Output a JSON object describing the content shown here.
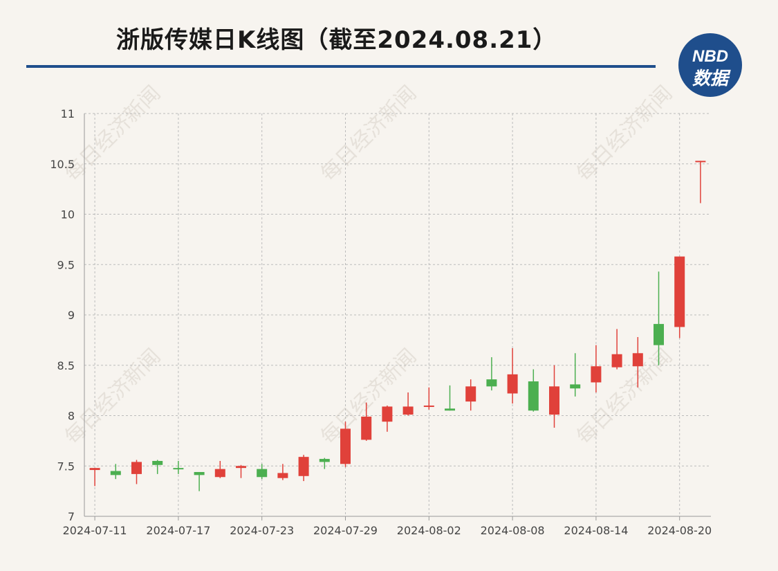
{
  "title": "浙版传媒日K线图（截至2024.08.21）",
  "logo": {
    "top": "NBD",
    "bottom": "数据",
    "color": "#1f4e8c"
  },
  "watermark_text": "每日经济新闻",
  "colors": {
    "up": "#e0413a",
    "down": "#4caf50",
    "axis": "#999999",
    "grid": "#bbbbbb",
    "title_rule": "#1f4e8c"
  },
  "chart_data": {
    "type": "candlestick",
    "title": "浙版传媒日K线图（截至2024.08.21）",
    "ylim": [
      7,
      11
    ],
    "yticks": [
      7,
      7.5,
      8,
      8.5,
      9,
      9.5,
      10,
      10.5,
      11
    ],
    "ytick_labels": [
      "7",
      "7.5",
      "8",
      "8.5",
      "9",
      "9.5",
      "10",
      "10.5",
      "11"
    ],
    "xtick_labels": [
      "2024-07-11",
      "2024-07-17",
      "2024-07-23",
      "2024-07-29",
      "2024-08-02",
      "2024-08-08",
      "2024-08-14",
      "2024-08-20"
    ],
    "xtick_index": [
      0,
      4,
      8,
      12,
      16,
      20,
      24,
      28
    ],
    "grid": "dashed",
    "candles": [
      {
        "date": "2024-07-11",
        "open": 7.46,
        "close": 7.48,
        "high": 7.48,
        "low": 7.3
      },
      {
        "date": "2024-07-12",
        "open": 7.45,
        "close": 7.41,
        "high": 7.52,
        "low": 7.37
      },
      {
        "date": "2024-07-15",
        "open": 7.42,
        "close": 7.54,
        "high": 7.56,
        "low": 7.32
      },
      {
        "date": "2024-07-16",
        "open": 7.55,
        "close": 7.51,
        "high": 7.56,
        "low": 7.42
      },
      {
        "date": "2024-07-17",
        "open": 7.48,
        "close": 7.47,
        "high": 7.55,
        "low": 7.42
      },
      {
        "date": "2024-07-18",
        "open": 7.44,
        "close": 7.41,
        "high": 7.44,
        "low": 7.25
      },
      {
        "date": "2024-07-19",
        "open": 7.39,
        "close": 7.47,
        "high": 7.55,
        "low": 7.38
      },
      {
        "date": "2024-07-22",
        "open": 7.48,
        "close": 7.5,
        "high": 7.51,
        "low": 7.38
      },
      {
        "date": "2024-07-23",
        "open": 7.47,
        "close": 7.39,
        "high": 7.52,
        "low": 7.37
      },
      {
        "date": "2024-07-24",
        "open": 7.38,
        "close": 7.43,
        "high": 7.52,
        "low": 7.36
      },
      {
        "date": "2024-07-25",
        "open": 7.4,
        "close": 7.59,
        "high": 7.61,
        "low": 7.35
      },
      {
        "date": "2024-07-26",
        "open": 7.57,
        "close": 7.54,
        "high": 7.58,
        "low": 7.47
      },
      {
        "date": "2024-07-29",
        "open": 7.52,
        "close": 7.87,
        "high": 7.94,
        "low": 7.49
      },
      {
        "date": "2024-07-30",
        "open": 7.76,
        "close": 7.99,
        "high": 8.13,
        "low": 7.75
      },
      {
        "date": "2024-07-31",
        "open": 7.94,
        "close": 8.09,
        "high": 8.1,
        "low": 7.84
      },
      {
        "date": "2024-08-01",
        "open": 8.01,
        "close": 8.09,
        "high": 8.23,
        "low": 8.0
      },
      {
        "date": "2024-08-02",
        "open": 8.09,
        "close": 8.1,
        "high": 8.28,
        "low": 8.06
      },
      {
        "date": "2024-08-05",
        "open": 8.07,
        "close": 8.05,
        "high": 8.3,
        "low": 8.05
      },
      {
        "date": "2024-08-06",
        "open": 8.14,
        "close": 8.29,
        "high": 8.36,
        "low": 8.05
      },
      {
        "date": "2024-08-07",
        "open": 8.36,
        "close": 8.29,
        "high": 8.58,
        "low": 8.25
      },
      {
        "date": "2024-08-08",
        "open": 8.22,
        "close": 8.41,
        "high": 8.67,
        "low": 8.12
      },
      {
        "date": "2024-08-09",
        "open": 8.34,
        "close": 8.05,
        "high": 8.46,
        "low": 8.04
      },
      {
        "date": "2024-08-12",
        "open": 8.01,
        "close": 8.29,
        "high": 8.5,
        "low": 7.88
      },
      {
        "date": "2024-08-13",
        "open": 8.31,
        "close": 8.27,
        "high": 8.62,
        "low": 8.19
      },
      {
        "date": "2024-08-14",
        "open": 8.33,
        "close": 8.49,
        "high": 8.7,
        "low": 8.23
      },
      {
        "date": "2024-08-15",
        "open": 8.48,
        "close": 8.61,
        "high": 8.86,
        "low": 8.46
      },
      {
        "date": "2024-08-16",
        "open": 8.49,
        "close": 8.62,
        "high": 8.78,
        "low": 8.28
      },
      {
        "date": "2024-08-19",
        "open": 8.91,
        "close": 8.7,
        "high": 9.43,
        "low": 8.5
      },
      {
        "date": "2024-08-20",
        "open": 8.88,
        "close": 9.58,
        "high": 9.58,
        "low": 8.77
      },
      {
        "date": "2024-08-21",
        "open": 10.53,
        "close": 10.53,
        "high": 10.53,
        "low": 10.11
      }
    ]
  }
}
